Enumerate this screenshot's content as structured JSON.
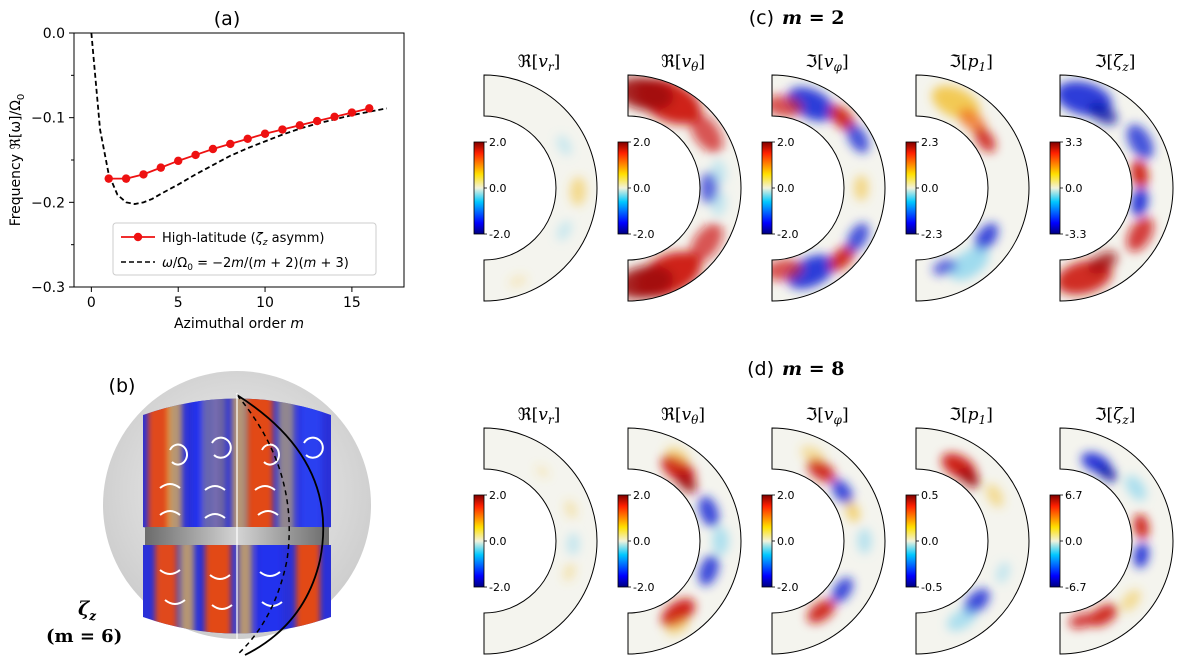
{
  "panel_labels": {
    "a": "(a)",
    "b": "(b)",
    "c": "(c)",
    "d": "(d)"
  },
  "panel_b": {
    "label_line1": "ζ",
    "label_sub": "z",
    "label_line2": "(m = 6)"
  },
  "chart_data": [
    {
      "id": "a",
      "type": "line",
      "title": "(a)",
      "xlabel": "Azimuthal order m",
      "ylabel": "Frequency ℜ[ω]/Ω₀",
      "xlim": [
        -1,
        18
      ],
      "ylim": [
        -0.3,
        0.0
      ],
      "xticks": [
        0,
        5,
        10,
        15
      ],
      "yticks": [
        0.0,
        -0.1,
        -0.2,
        -0.3
      ],
      "ytick_labels": [
        "0.0",
        "−0.1",
        "−0.2",
        "−0.3"
      ],
      "legend_position": "lower-right",
      "series": [
        {
          "name": "High-latitude (ζz asymm)",
          "color": "#ee1111",
          "marker": "circle",
          "style": "solid",
          "x": [
            1,
            2,
            3,
            4,
            5,
            6,
            7,
            8,
            9,
            10,
            11,
            12,
            13,
            14,
            15,
            16
          ],
          "y": [
            -0.172,
            -0.172,
            -0.167,
            -0.159,
            -0.151,
            -0.144,
            -0.137,
            -0.131,
            -0.125,
            -0.119,
            -0.114,
            -0.109,
            -0.104,
            -0.099,
            -0.094,
            -0.089
          ]
        },
        {
          "name": "ω/Ω₀ = −2m/(m + 2)(m + 3)",
          "color": "#000000",
          "style": "dashed",
          "x": [
            0,
            0.5,
            1,
            1.5,
            2,
            2.5,
            3,
            3.5,
            4,
            5,
            6,
            7,
            8,
            9,
            10,
            11,
            12,
            13,
            14,
            15,
            16,
            17
          ],
          "y": [
            0,
            -0.114,
            -0.167,
            -0.191,
            -0.2,
            -0.202,
            -0.2,
            -0.196,
            -0.19,
            -0.179,
            -0.167,
            -0.156,
            -0.145,
            -0.136,
            -0.128,
            -0.12,
            -0.113,
            -0.107,
            -0.102,
            -0.097,
            -0.093,
            -0.089
          ]
        }
      ]
    },
    {
      "id": "c",
      "type": "heatmap",
      "title": "(c) m = 2",
      "title_prefix": "(c)",
      "title_m": "m = 2",
      "colormap": "jet",
      "colorbar_ticks": [
        [
          "2.0",
          "0.0",
          "-2.0"
        ],
        [
          "2.0",
          "0.0",
          "-2.0"
        ],
        [
          "2.0",
          "0.0",
          "-2.0"
        ],
        [
          "2.3",
          "0.0",
          "-2.3"
        ],
        [
          "3.3",
          "0.0",
          "-3.3"
        ]
      ],
      "subplot_titles": [
        "ℜ[v_r]",
        "ℜ[v_θ]",
        "ℑ[v_φ]",
        "ℑ[p_1]",
        "ℑ[ζ_z]"
      ]
    },
    {
      "id": "d",
      "type": "heatmap",
      "title": "(d) m = 8",
      "title_prefix": "(d)",
      "title_m": "m = 8",
      "colormap": "jet",
      "colorbar_ticks": [
        [
          "2.0",
          "0.0",
          "-2.0"
        ],
        [
          "2.0",
          "0.0",
          "-2.0"
        ],
        [
          "2.0",
          "0.0",
          "-2.0"
        ],
        [
          "0.5",
          "0.0",
          "-0.5"
        ],
        [
          "6.7",
          "0.0",
          "-6.7"
        ]
      ],
      "subplot_titles": [
        "ℜ[v_r]",
        "ℜ[v_θ]",
        "ℑ[v_φ]",
        "ℑ[p_1]",
        "ℑ[ζ_z]"
      ]
    }
  ],
  "row_titles": {
    "c": [
      {
        "op": "ℜ",
        "v": "v",
        "sub": "r"
      },
      {
        "op": "ℜ",
        "v": "v",
        "sub": "θ"
      },
      {
        "op": "ℑ",
        "v": "v",
        "sub": "φ"
      },
      {
        "op": "ℑ",
        "v": "p",
        "sub": "1"
      },
      {
        "op": "ℑ",
        "v": "ζ",
        "sub": "z"
      }
    ],
    "d": [
      {
        "op": "ℜ",
        "v": "v",
        "sub": "r"
      },
      {
        "op": "ℜ",
        "v": "v",
        "sub": "θ"
      },
      {
        "op": "ℑ",
        "v": "v",
        "sub": "φ"
      },
      {
        "op": "ℑ",
        "v": "p",
        "sub": "1"
      },
      {
        "op": "ℑ",
        "v": "ζ",
        "sub": "z"
      }
    ]
  },
  "colors": {
    "red_series": "#ee1111",
    "axis": "#000000"
  }
}
